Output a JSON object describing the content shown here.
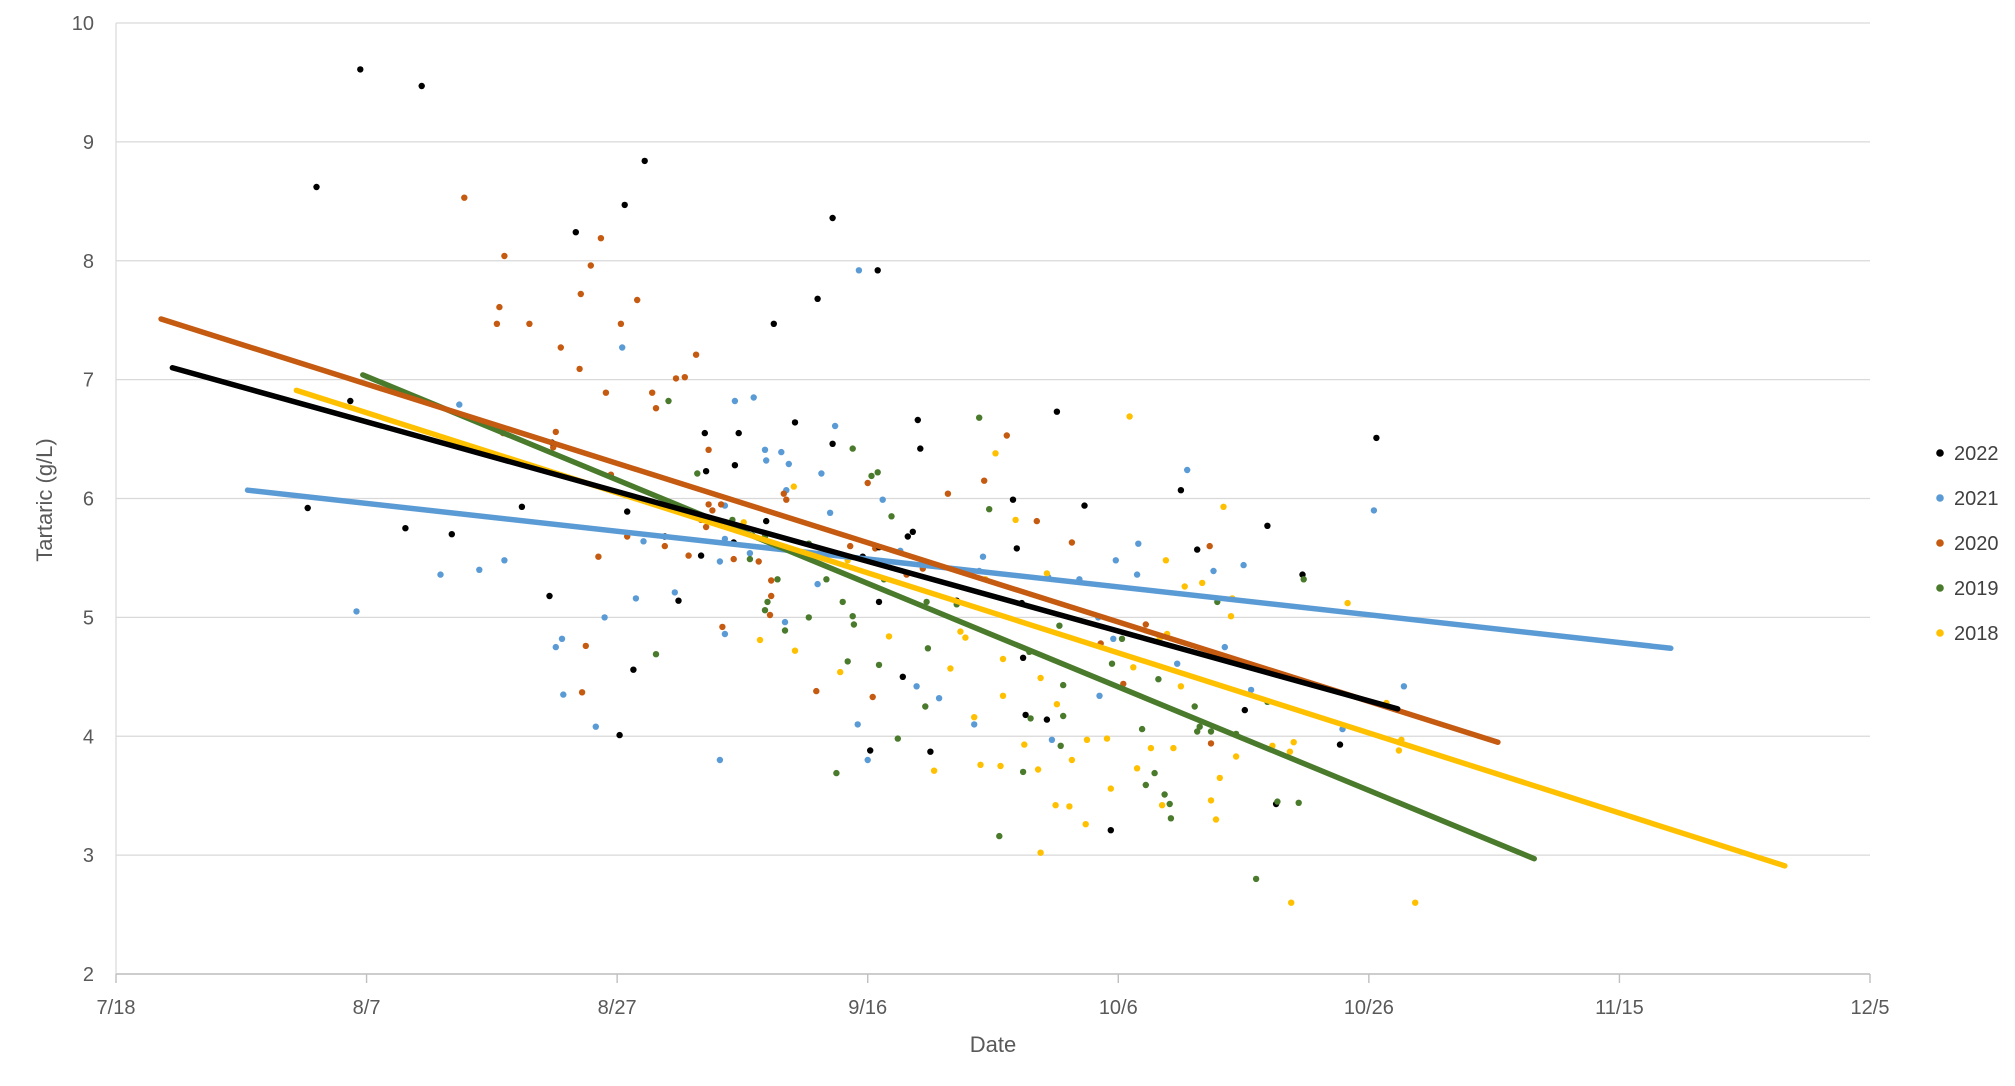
{
  "chart_data": {
    "type": "scatter",
    "title": "",
    "xlabel": "Date",
    "ylabel": "Tartaric  (g/L)",
    "x_ticks": [
      "7/18",
      "8/7",
      "8/27",
      "9/16",
      "10/6",
      "10/26",
      "11/15",
      "12/5"
    ],
    "x_tick_days": [
      0,
      20,
      40,
      60,
      80,
      100,
      120,
      140
    ],
    "xlim_days": [
      0,
      140
    ],
    "ylim": [
      2,
      10
    ],
    "y_ticks": [
      2,
      3,
      4,
      5,
      6,
      7,
      8,
      9,
      10
    ],
    "grid": true,
    "legend_position": "right",
    "series": [
      {
        "name": "2022",
        "color": "#000000",
        "point_days": [
          19.5,
          100.6,
          57.2,
          63.6,
          26.8,
          16.0,
          60.9,
          74.3,
          60.2,
          32.4,
          34.6,
          24.4,
          47.0,
          47.1,
          91.9,
          40.2,
          72.6,
          59.6,
          86.3,
          43.8,
          40.8,
          85.0,
          42.2,
          18.7,
          48.9,
          92.6,
          15.3,
          57.2,
          97.7,
          77.3,
          52.5,
          60.9,
          46.7,
          62.8,
          94.7,
          65.0,
          63.2,
          49.3,
          90.1,
          75.1,
          67.1,
          71.9,
          44.9,
          64.2,
          49.4,
          79.4,
          40.6,
          56.0,
          34.8,
          23.1,
          54.2,
          49.7,
          64.0,
          71.6,
          72.4,
          36.7,
          41.3,
          60.8,
          51.9,
          72.3
        ],
        "point_values": [
          9.61,
          6.51,
          8.36,
          5.72,
          5.7,
          8.62,
          5.59,
          4.14,
          3.88,
          5.93,
          5.18,
          9.47,
          6.55,
          6.23,
          5.77,
          4.01,
          4.18,
          5.51,
          5.57,
          5.68,
          5.89,
          6.07,
          8.84,
          6.82,
          5.79,
          3.43,
          5.92,
          6.46,
          3.93,
          5.94,
          7.47,
          5.13,
          5.52,
          4.5,
          5.36,
          3.87,
          5.68,
          5.63,
          4.22,
          6.73,
          5.14,
          5.58,
          5.14,
          6.42,
          6.28,
          3.21,
          8.47,
          7.68,
          6.47,
          5.75,
          6.64,
          6.55,
          6.66,
          5.99,
          4.66,
          8.24,
          4.56,
          7.92,
          5.81,
          5.12
        ],
        "trend": {
          "x0": 4.5,
          "y0": 7.1,
          "x1": 102.3,
          "y1": 4.23
        }
      },
      {
        "name": "2021",
        "color": "#5b9bd5",
        "point_days": [
          38.3,
          68.5,
          59.2,
          35.6,
          44.6,
          90.6,
          41.5,
          90.0,
          31.0,
          35.7,
          35.1,
          27.4,
          79.6,
          74.7,
          19.2,
          25.9,
          78.5,
          42.1,
          56.0,
          53.7,
          102.8,
          97.9,
          65.7,
          84.7,
          100.4,
          39.0,
          69.2,
          57.4,
          50.9,
          63.9,
          50.6,
          61.2,
          60.0,
          48.6,
          62.6,
          81.6,
          53.5,
          40.4,
          81.5,
          74.4,
          53.4,
          76.9,
          68.9,
          87.6,
          29.0,
          51.9,
          59.3,
          88.5,
          57.0,
          85.5,
          79.8,
          48.6,
          56.3,
          78.4,
          48.6,
          53.1,
          49.4,
          51.8,
          48.2,
          48.2
        ],
        "point_values": [
          4.08,
          4.1,
          4.1,
          4.82,
          5.21,
          4.39,
          5.16,
          5.44,
          5.48,
          4.35,
          4.75,
          6.79,
          4.82,
          3.97,
          5.05,
          5.36,
          4.34,
          5.64,
          5.28,
          6.29,
          4.42,
          4.06,
          4.32,
          4.61,
          5.9,
          5.0,
          5.51,
          6.61,
          6.85,
          4.42,
          5.54,
          5.99,
          3.8,
          5.66,
          5.56,
          5.62,
          6.07,
          7.27,
          5.36,
          5.34,
          4.96,
          5.32,
          5.39,
          5.39,
          5.4,
          6.32,
          7.92,
          4.75,
          5.88,
          6.24,
          5.48,
          4.86,
          6.21,
          5.0,
          5.94,
          6.39,
          6.82,
          6.41,
          5.47,
          3.8
        ],
        "trend": {
          "x0": 10.5,
          "y0": 6.07,
          "x1": 124.1,
          "y1": 4.74
        }
      },
      {
        "name": "2020",
        "color": "#c55a11",
        "point_days": [
          37.9,
          51.3,
          40.8,
          69.3,
          60.6,
          52.3,
          27.8,
          47.1,
          53.3,
          44.7,
          37.5,
          47.3,
          37.1,
          31.0,
          45.4,
          33.0,
          58.6,
          34.9,
          40.3,
          38.7,
          42.8,
          73.5,
          46.3,
          63.1,
          37.2,
          30.9,
          39.5,
          53.5,
          64.4,
          30.4,
          71.1,
          60.0,
          43.8,
          39.1,
          35.5,
          80.4,
          87.3,
          43.1,
          78.6,
          76.3,
          30.6,
          66.4,
          46.7,
          60.4,
          38.5,
          45.7,
          55.9,
          52.3,
          35.1,
          47.6,
          37.0,
          48.4,
          41.6,
          47.3,
          49.3,
          87.4,
          48.3,
          43.8,
          82.2,
          52.2
        ],
        "point_values": [
          7.96,
          5.47,
          5.68,
          6.15,
          5.58,
          5.18,
          8.53,
          5.76,
          6.04,
          7.01,
          4.76,
          5.95,
          7.72,
          8.04,
          7.02,
          7.47,
          5.6,
          6.43,
          7.47,
          8.19,
          6.89,
          5.81,
          7.21,
          5.36,
          4.37,
          6.55,
          6.2,
          5.99,
          5.41,
          7.47,
          6.53,
          6.13,
          5.6,
          6.89,
          7.27,
          4.44,
          5.6,
          6.76,
          4.78,
          5.63,
          7.61,
          6.04,
          5.82,
          4.33,
          5.51,
          5.52,
          4.38,
          5.31,
          6.56,
          5.9,
          7.09,
          4.92,
          7.67,
          6.41,
          5.49,
          3.94,
          5.95,
          5.94,
          4.94,
          5.02
        ],
        "trend": {
          "x0": 3.6,
          "y0": 7.51,
          "x1": 110.3,
          "y1": 3.95
        }
      },
      {
        "name": "2019",
        "color": "#4a7a2b",
        "point_days": [
          44.1,
          94.4,
          94.8,
          80.3,
          73.0,
          55.3,
          91.9,
          60.8,
          64.8,
          60.3,
          70.5,
          58.8,
          75.6,
          57.5,
          62.4,
          72.9,
          91.0,
          86.1,
          82.2,
          84.1,
          61.3,
          52.8,
          50.8,
          53.4,
          60.9,
          86.5,
          84.2,
          58.9,
          72.4,
          92.7,
          51.8,
          61.9,
          58.0,
          86.3,
          75.3,
          43.1,
          50.6,
          87.4,
          49.2,
          58.4,
          81.9,
          46.4,
          83.7,
          64.7,
          52.0,
          87.9,
          51.8,
          83.2,
          55.3,
          64.6,
          58.8,
          56.7,
          75.4,
          68.9,
          75.6,
          82.9,
          89.4,
          67.1,
          79.5,
          69.7
        ],
        "point_values": [
          6.82,
          3.44,
          5.32,
          4.82,
          4.15,
          5.0,
          4.29,
          6.22,
          4.74,
          6.19,
          3.16,
          6.42,
          4.43,
          3.69,
          3.98,
          4.71,
          2.8,
          4.25,
          3.59,
          3.43,
          5.32,
          5.32,
          5.69,
          4.89,
          4.6,
          4.08,
          3.31,
          4.94,
          3.7,
          3.45,
          5.68,
          5.85,
          5.13,
          4.04,
          4.93,
          4.69,
          5.49,
          4.04,
          5.82,
          4.63,
          4.06,
          6.21,
          3.51,
          5.13,
          5.13,
          5.13,
          5.06,
          4.48,
          5.62,
          4.25,
          5.01,
          5.32,
          3.92,
          6.68,
          4.17,
          3.69,
          4.02,
          5.11,
          4.61,
          5.91
        ],
        "trend": {
          "x0": 19.7,
          "y0": 7.04,
          "x1": 113.2,
          "y1": 2.97
        }
      },
      {
        "name": "2018",
        "color": "#ffc000",
        "point_days": [
          85.0,
          69.4,
          83.8,
          102.6,
          61.7,
          84.4,
          70.2,
          73.8,
          70.6,
          51.4,
          93.7,
          77.5,
          76.1,
          89.4,
          101.4,
          92.3,
          75.1,
          65.3,
          70.8,
          73.6,
          71.8,
          87.8,
          81.2,
          83.3,
          74.3,
          57.8,
          102.4,
          54.2,
          72.5,
          93.8,
          73.8,
          67.8,
          75.0,
          83.9,
          70.8,
          82.6,
          83.5,
          89.0,
          66.6,
          58.4,
          88.4,
          54.1,
          50.1,
          67.4,
          79.1,
          89.1,
          79.4,
          85.3,
          76.3,
          80.9,
          81.5,
          77.4,
          94.0,
          98.3,
          103.7,
          69.0,
          68.5,
          87.4,
          88.1,
          86.7
        ],
        "point_values": [
          4.42,
          5.32,
          5.48,
          3.97,
          4.84,
          3.9,
          6.38,
          3.02,
          3.75,
          4.81,
          3.87,
          3.97,
          3.41,
          3.83,
          4.28,
          3.92,
          4.27,
          3.71,
          4.34,
          3.72,
          5.82,
          3.3,
          4.58,
          4.82,
          5.37,
          4.54,
          3.88,
          4.72,
          3.93,
          2.6,
          4.49,
          4.83,
          3.42,
          4.86,
          4.65,
          3.9,
          3.42,
          5.01,
          4.57,
          5.48,
          5.93,
          6.1,
          5.8,
          4.88,
          3.98,
          5.16,
          3.56,
          5.26,
          3.8,
          6.69,
          3.73,
          3.26,
          3.95,
          5.12,
          2.6,
          3.76,
          4.16,
          3.46,
          3.65,
          5.29
        ],
        "trend": {
          "x0": 14.4,
          "y0": 6.91,
          "x1": 133.2,
          "y1": 2.91
        }
      }
    ]
  }
}
